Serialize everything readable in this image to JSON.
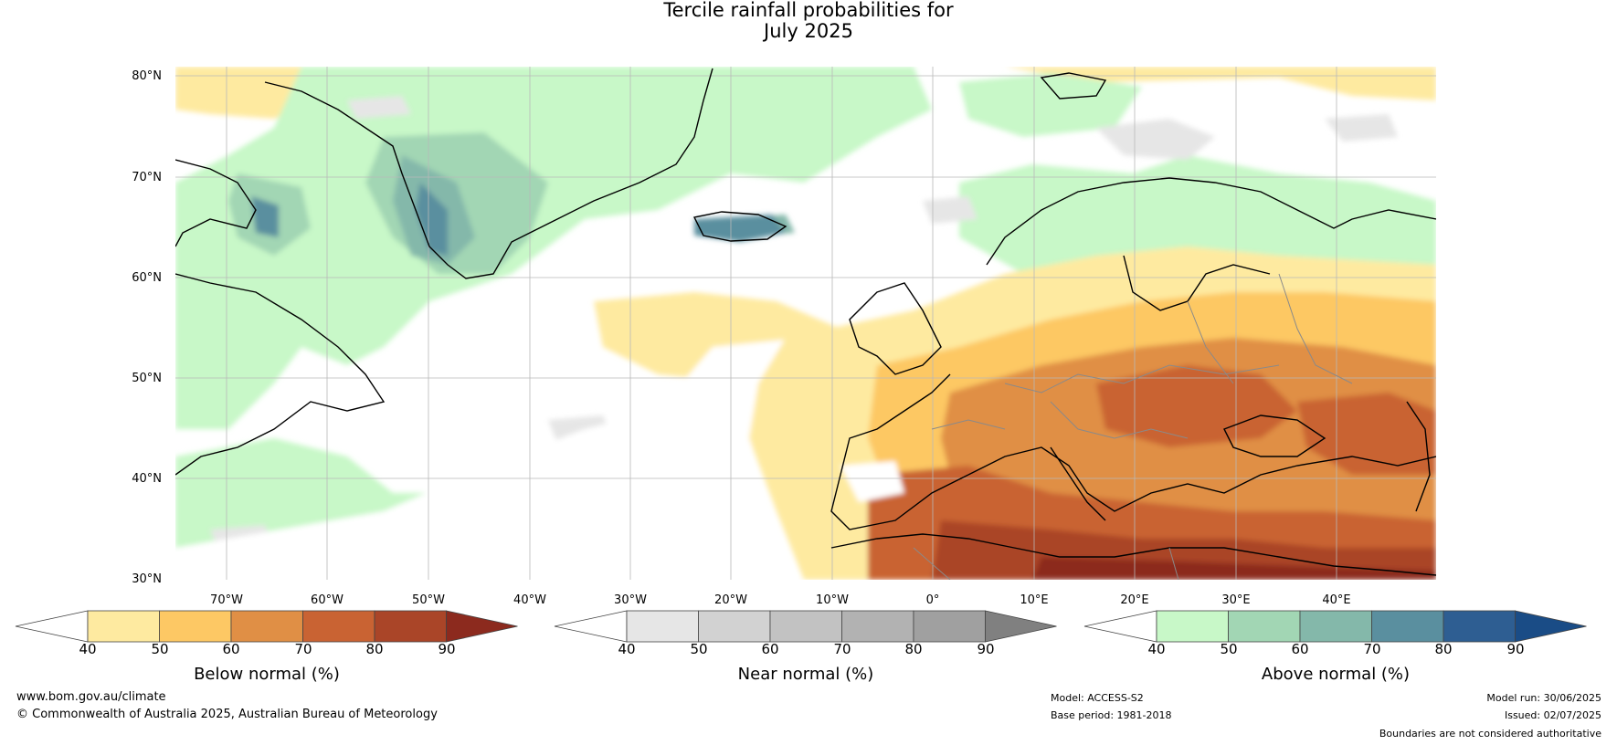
{
  "title_line1": "Tercile rainfall probabilities for",
  "title_line2": "July 2025",
  "lat_labels": [
    "80°N",
    "70°N",
    "60°N",
    "50°N",
    "40°N",
    "30°N"
  ],
  "lon_labels": [
    "70°W",
    "60°W",
    "50°W",
    "40°W",
    "30°W",
    "20°W",
    "10°W",
    "0°",
    "10°E",
    "20°E",
    "30°E",
    "40°E"
  ],
  "colorbars": [
    {
      "title": "Below normal (%)",
      "ticks": [
        "40",
        "50",
        "60",
        "70",
        "80",
        "90"
      ],
      "colors": [
        "#ffffff",
        "#feeaa0",
        "#fdc864",
        "#e08f45",
        "#c96333",
        "#aa4528",
        "#8c2a1e"
      ]
    },
    {
      "title": "Near normal (%)",
      "ticks": [
        "40",
        "50",
        "60",
        "70",
        "80",
        "90"
      ],
      "colors": [
        "#ffffff",
        "#e6e6e6",
        "#d2d2d2",
        "#c2c2c2",
        "#b2b2b2",
        "#a0a0a0",
        "#808080"
      ]
    },
    {
      "title": "Above normal (%)",
      "ticks": [
        "40",
        "50",
        "60",
        "70",
        "80",
        "90"
      ],
      "colors": [
        "#ffffff",
        "#c8f8c8",
        "#a2d6b4",
        "#84b8aa",
        "#5a8f9f",
        "#2e5e92",
        "#1a4c86"
      ]
    }
  ],
  "footer": {
    "website": "www.bom.gov.au/climate",
    "copyright": "© Commonwealth of Australia 2025, Australian Bureau of Meteorology",
    "model": "Model: ACCESS-S2",
    "base_period": "Base period: 1981-2018",
    "model_run": "Model run: 30/06/2025",
    "issued": "Issued: 02/07/2025",
    "disclaimer": "Boundaries are not considered authoritative"
  }
}
